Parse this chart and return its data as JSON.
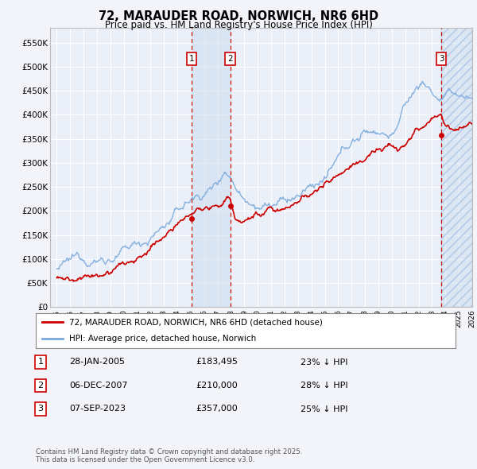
{
  "title": "72, MARAUDER ROAD, NORWICH, NR6 6HD",
  "subtitle": "Price paid vs. HM Land Registry's House Price Index (HPI)",
  "legend_label_red": "72, MARAUDER ROAD, NORWICH, NR6 6HD (detached house)",
  "legend_label_blue": "HPI: Average price, detached house, Norwich",
  "transactions": [
    {
      "label": "1",
      "date": "28-JAN-2005",
      "price": 183495,
      "hpi_diff": "23% ↓ HPI",
      "x_year": 2005.07
    },
    {
      "label": "2",
      "date": "06-DEC-2007",
      "price": 210000,
      "hpi_diff": "28% ↓ HPI",
      "x_year": 2007.95
    },
    {
      "label": "3",
      "date": "07-SEP-2023",
      "price": 357000,
      "hpi_diff": "25% ↓ HPI",
      "x_year": 2023.69
    }
  ],
  "footer": "Contains HM Land Registry data © Crown copyright and database right 2025.\nThis data is licensed under the Open Government Licence v3.0.",
  "ylim": [
    0,
    580000
  ],
  "yticks": [
    0,
    50000,
    100000,
    150000,
    200000,
    250000,
    300000,
    350000,
    400000,
    450000,
    500000,
    550000
  ],
  "xlim": [
    1994.5,
    2026.0
  ],
  "xticks": [
    1995,
    1996,
    1997,
    1998,
    1999,
    2000,
    2001,
    2002,
    2003,
    2004,
    2005,
    2006,
    2007,
    2008,
    2009,
    2010,
    2011,
    2012,
    2013,
    2014,
    2015,
    2016,
    2017,
    2018,
    2019,
    2020,
    2021,
    2022,
    2023,
    2024,
    2025,
    2026
  ],
  "bg_color": "#f2f4fa",
  "plot_bg_color": "#eaeff8",
  "grid_color": "#ffffff",
  "red_color": "#cc0000",
  "blue_color": "#7aaadd",
  "shade_color": "#d0dff0"
}
